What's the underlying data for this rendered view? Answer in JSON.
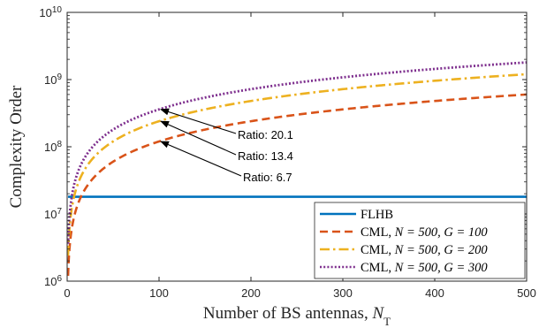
{
  "chart_data": {
    "type": "line",
    "xlabel": "Number of BS antennas, ",
    "xlabel_sub": "N",
    "xlabel_subscript": "T",
    "ylabel": "Complexity Order",
    "x_scale": "linear",
    "y_scale": "log",
    "xlim": [
      0,
      500
    ],
    "ylim": [
      1000000,
      10000000000
    ],
    "grid": false,
    "legend_position": "bottom-right",
    "x_ticks": [
      0,
      100,
      200,
      300,
      400,
      500
    ],
    "x_tick_labels": [
      "0",
      "100",
      "200",
      "300",
      "400",
      "500"
    ],
    "y_ticks": [
      1000000,
      10000000,
      100000000,
      1000000000,
      10000000000
    ],
    "y_tick_base": "10",
    "y_tick_exponents": [
      "6",
      "7",
      "8",
      "9",
      "10"
    ],
    "series": [
      {
        "name": "FLHB",
        "legend_prefix": "FLHB",
        "legend_math": "",
        "color": "#0072BD",
        "dash": "solid",
        "x": [
          1,
          500
        ],
        "y": [
          18000000,
          18000000
        ]
      },
      {
        "name": "CML, N = 500, G = 100",
        "legend_prefix": "CML, ",
        "legend_math": "N = 500, G = 100",
        "color": "#D95319",
        "dash": "dashed",
        "x": [
          1,
          10,
          20,
          50,
          100,
          150,
          200,
          250,
          300,
          350,
          400,
          450,
          500
        ],
        "y": [
          1200000,
          12000000,
          24000000,
          60000000,
          120000000,
          180000000,
          240000000,
          300000000,
          360000000,
          420000000,
          480000000,
          540000000,
          600000000
        ]
      },
      {
        "name": "CML, N = 500, G = 200",
        "legend_prefix": "CML, ",
        "legend_math": "N = 500, G = 200",
        "color": "#EDB120",
        "dash": "dashdot",
        "x": [
          1,
          10,
          20,
          50,
          100,
          150,
          200,
          250,
          300,
          350,
          400,
          450,
          500
        ],
        "y": [
          2400000,
          24000000,
          48000000,
          120000000,
          240000000,
          360000000,
          480000000,
          600000000,
          720000000,
          840000000,
          960000000,
          1080000000,
          1200000000
        ]
      },
      {
        "name": "CML, N = 500, G = 300",
        "legend_prefix": "CML, ",
        "legend_math": "N = 500, G = 300",
        "color": "#7E2F8E",
        "dash": "dotted",
        "x": [
          1,
          10,
          20,
          50,
          100,
          150,
          200,
          250,
          300,
          350,
          400,
          450,
          500
        ],
        "y": [
          3600000,
          36000000,
          72000000,
          180000000,
          360000000,
          540000000,
          720000000,
          900000000,
          1080000000,
          1260000000,
          1440000000,
          1620000000,
          1800000000
        ]
      }
    ],
    "annotations": [
      {
        "text": "Ratio: 20.1",
        "x": 100,
        "y": 360000000
      },
      {
        "text": "Ratio: 13.4",
        "x": 100,
        "y": 240000000
      },
      {
        "text": "Ratio: 6.7",
        "x": 100,
        "y": 120000000
      }
    ]
  }
}
